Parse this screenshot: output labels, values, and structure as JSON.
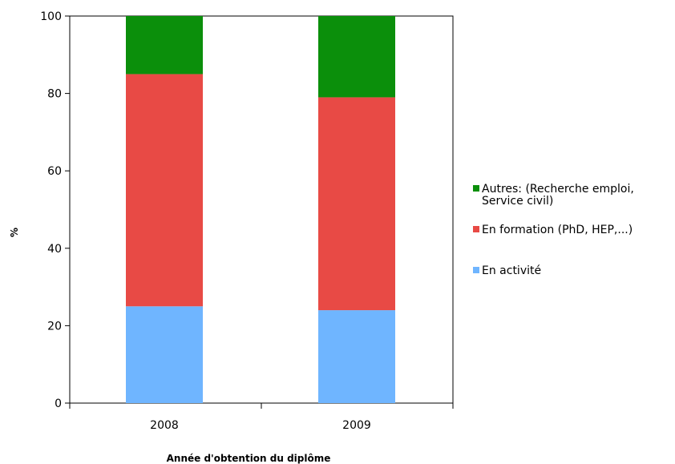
{
  "chart_data": {
    "type": "bar",
    "stacked": true,
    "title": "",
    "xlabel": "Année d'obtention du diplôme",
    "ylabel": "%",
    "ylim": [
      0,
      100
    ],
    "yticks": [
      "0",
      "20",
      "40",
      "60",
      "80",
      "100"
    ],
    "categories": [
      "2008",
      "2009"
    ],
    "grid": false,
    "legend_position": "right",
    "series": [
      {
        "name": "En activité",
        "values": [
          25,
          24
        ],
        "color": "#6fb5ff"
      },
      {
        "name": "En formation (PhD, HEP,...)",
        "values": [
          60,
          55
        ],
        "color": "#e84a45"
      },
      {
        "name": "Autres: (Recherche emploi, Service civil)",
        "values": [
          15,
          21
        ],
        "color": "#0b8f0b"
      }
    ],
    "legend": [
      {
        "lines": [
          "Autres: (Recherche emploi,",
          "Service civil)"
        ],
        "color": "#0b8f0b"
      },
      {
        "lines": [
          "En formation (PhD, HEP,...)"
        ],
        "color": "#e84a45"
      },
      {
        "lines": [
          "En activité"
        ],
        "color": "#6fb5ff"
      }
    ]
  }
}
